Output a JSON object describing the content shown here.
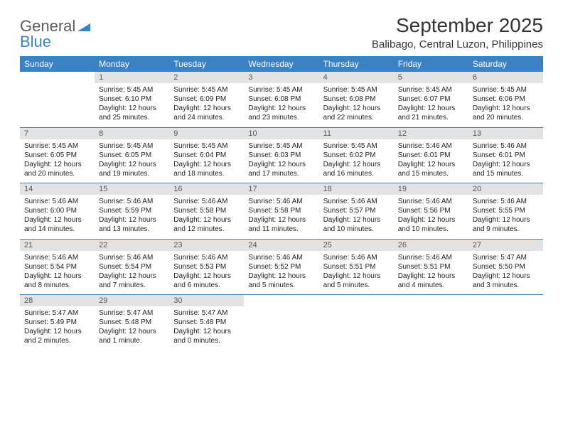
{
  "logo": {
    "text1": "General",
    "text2": "Blue"
  },
  "title": "September 2025",
  "location": "Balibago, Central Luzon, Philippines",
  "colors": {
    "header_bg": "#3b82c4",
    "header_text": "#ffffff",
    "daynum_bg": "#e3e3e3",
    "daynum_text": "#555555",
    "body_text": "#222222",
    "title_text": "#333333",
    "logo_gray": "#5b5b5b",
    "logo_blue": "#3b82c4",
    "separator": "#3b82c4"
  },
  "dow": [
    "Sunday",
    "Monday",
    "Tuesday",
    "Wednesday",
    "Thursday",
    "Friday",
    "Saturday"
  ],
  "weeks": [
    [
      null,
      {
        "n": "1",
        "sr": "Sunrise: 5:45 AM",
        "ss": "Sunset: 6:10 PM",
        "dl": "Daylight: 12 hours and 25 minutes."
      },
      {
        "n": "2",
        "sr": "Sunrise: 5:45 AM",
        "ss": "Sunset: 6:09 PM",
        "dl": "Daylight: 12 hours and 24 minutes."
      },
      {
        "n": "3",
        "sr": "Sunrise: 5:45 AM",
        "ss": "Sunset: 6:08 PM",
        "dl": "Daylight: 12 hours and 23 minutes."
      },
      {
        "n": "4",
        "sr": "Sunrise: 5:45 AM",
        "ss": "Sunset: 6:08 PM",
        "dl": "Daylight: 12 hours and 22 minutes."
      },
      {
        "n": "5",
        "sr": "Sunrise: 5:45 AM",
        "ss": "Sunset: 6:07 PM",
        "dl": "Daylight: 12 hours and 21 minutes."
      },
      {
        "n": "6",
        "sr": "Sunrise: 5:45 AM",
        "ss": "Sunset: 6:06 PM",
        "dl": "Daylight: 12 hours and 20 minutes."
      }
    ],
    [
      {
        "n": "7",
        "sr": "Sunrise: 5:45 AM",
        "ss": "Sunset: 6:05 PM",
        "dl": "Daylight: 12 hours and 20 minutes."
      },
      {
        "n": "8",
        "sr": "Sunrise: 5:45 AM",
        "ss": "Sunset: 6:05 PM",
        "dl": "Daylight: 12 hours and 19 minutes."
      },
      {
        "n": "9",
        "sr": "Sunrise: 5:45 AM",
        "ss": "Sunset: 6:04 PM",
        "dl": "Daylight: 12 hours and 18 minutes."
      },
      {
        "n": "10",
        "sr": "Sunrise: 5:45 AM",
        "ss": "Sunset: 6:03 PM",
        "dl": "Daylight: 12 hours and 17 minutes."
      },
      {
        "n": "11",
        "sr": "Sunrise: 5:45 AM",
        "ss": "Sunset: 6:02 PM",
        "dl": "Daylight: 12 hours and 16 minutes."
      },
      {
        "n": "12",
        "sr": "Sunrise: 5:46 AM",
        "ss": "Sunset: 6:01 PM",
        "dl": "Daylight: 12 hours and 15 minutes."
      },
      {
        "n": "13",
        "sr": "Sunrise: 5:46 AM",
        "ss": "Sunset: 6:01 PM",
        "dl": "Daylight: 12 hours and 15 minutes."
      }
    ],
    [
      {
        "n": "14",
        "sr": "Sunrise: 5:46 AM",
        "ss": "Sunset: 6:00 PM",
        "dl": "Daylight: 12 hours and 14 minutes."
      },
      {
        "n": "15",
        "sr": "Sunrise: 5:46 AM",
        "ss": "Sunset: 5:59 PM",
        "dl": "Daylight: 12 hours and 13 minutes."
      },
      {
        "n": "16",
        "sr": "Sunrise: 5:46 AM",
        "ss": "Sunset: 5:58 PM",
        "dl": "Daylight: 12 hours and 12 minutes."
      },
      {
        "n": "17",
        "sr": "Sunrise: 5:46 AM",
        "ss": "Sunset: 5:58 PM",
        "dl": "Daylight: 12 hours and 11 minutes."
      },
      {
        "n": "18",
        "sr": "Sunrise: 5:46 AM",
        "ss": "Sunset: 5:57 PM",
        "dl": "Daylight: 12 hours and 10 minutes."
      },
      {
        "n": "19",
        "sr": "Sunrise: 5:46 AM",
        "ss": "Sunset: 5:56 PM",
        "dl": "Daylight: 12 hours and 10 minutes."
      },
      {
        "n": "20",
        "sr": "Sunrise: 5:46 AM",
        "ss": "Sunset: 5:55 PM",
        "dl": "Daylight: 12 hours and 9 minutes."
      }
    ],
    [
      {
        "n": "21",
        "sr": "Sunrise: 5:46 AM",
        "ss": "Sunset: 5:54 PM",
        "dl": "Daylight: 12 hours and 8 minutes."
      },
      {
        "n": "22",
        "sr": "Sunrise: 5:46 AM",
        "ss": "Sunset: 5:54 PM",
        "dl": "Daylight: 12 hours and 7 minutes."
      },
      {
        "n": "23",
        "sr": "Sunrise: 5:46 AM",
        "ss": "Sunset: 5:53 PM",
        "dl": "Daylight: 12 hours and 6 minutes."
      },
      {
        "n": "24",
        "sr": "Sunrise: 5:46 AM",
        "ss": "Sunset: 5:52 PM",
        "dl": "Daylight: 12 hours and 5 minutes."
      },
      {
        "n": "25",
        "sr": "Sunrise: 5:46 AM",
        "ss": "Sunset: 5:51 PM",
        "dl": "Daylight: 12 hours and 5 minutes."
      },
      {
        "n": "26",
        "sr": "Sunrise: 5:46 AM",
        "ss": "Sunset: 5:51 PM",
        "dl": "Daylight: 12 hours and 4 minutes."
      },
      {
        "n": "27",
        "sr": "Sunrise: 5:47 AM",
        "ss": "Sunset: 5:50 PM",
        "dl": "Daylight: 12 hours and 3 minutes."
      }
    ],
    [
      {
        "n": "28",
        "sr": "Sunrise: 5:47 AM",
        "ss": "Sunset: 5:49 PM",
        "dl": "Daylight: 12 hours and 2 minutes."
      },
      {
        "n": "29",
        "sr": "Sunrise: 5:47 AM",
        "ss": "Sunset: 5:48 PM",
        "dl": "Daylight: 12 hours and 1 minute."
      },
      {
        "n": "30",
        "sr": "Sunrise: 5:47 AM",
        "ss": "Sunset: 5:48 PM",
        "dl": "Daylight: 12 hours and 0 minutes."
      },
      null,
      null,
      null,
      null
    ]
  ]
}
